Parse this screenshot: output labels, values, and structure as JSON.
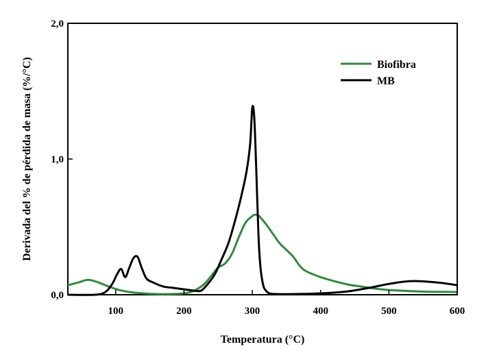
{
  "chart_data": {
    "type": "line",
    "xlabel": "Temperatura (°C)",
    "ylabel": "Derivada del % de pérdida de masa (%/°C)",
    "xlim": [
      30,
      600
    ],
    "ylim": [
      0,
      2.0
    ],
    "xticks": [
      100,
      200,
      300,
      400,
      500,
      600
    ],
    "xtick_labels": [
      "100",
      "200",
      "300",
      "400",
      "500",
      "600"
    ],
    "yticks": [
      0,
      1.0,
      2.0
    ],
    "ytick_labels": [
      "0,0",
      "1,0",
      "2,0"
    ],
    "grid": false,
    "legend_position": "top-right",
    "series": [
      {
        "name": "Biofibra",
        "color": "#2e8b3a",
        "x": [
          30,
          45,
          60,
          75,
          90,
          105,
          120,
          140,
          160,
          180,
          200,
          215,
          230,
          240,
          250,
          260,
          270,
          280,
          290,
          300,
          305,
          310,
          320,
          330,
          340,
          350,
          360,
          370,
          380,
          400,
          420,
          440,
          460,
          480,
          500,
          520,
          540,
          560,
          580,
          600
        ],
        "y": [
          0.07,
          0.09,
          0.11,
          0.09,
          0.06,
          0.035,
          0.02,
          0.01,
          0.005,
          0.005,
          0.01,
          0.03,
          0.08,
          0.14,
          0.2,
          0.23,
          0.3,
          0.42,
          0.53,
          0.58,
          0.59,
          0.58,
          0.52,
          0.45,
          0.38,
          0.33,
          0.28,
          0.21,
          0.17,
          0.13,
          0.1,
          0.075,
          0.06,
          0.045,
          0.035,
          0.03,
          0.025,
          0.022,
          0.021,
          0.02
        ]
      },
      {
        "name": "MB",
        "color": "#000000",
        "x": [
          30,
          70,
          85,
          95,
          102,
          108,
          114,
          120,
          126,
          132,
          138,
          145,
          155,
          170,
          185,
          200,
          215,
          225,
          235,
          245,
          255,
          265,
          275,
          285,
          292,
          297,
          300,
          303,
          306,
          309,
          312,
          316,
          320,
          325,
          335,
          360,
          400,
          440,
          470,
          500,
          520,
          530,
          545,
          560,
          580,
          600
        ],
        "y": [
          0,
          0,
          0.02,
          0.08,
          0.15,
          0.19,
          0.13,
          0.2,
          0.27,
          0.28,
          0.2,
          0.12,
          0.09,
          0.06,
          0.05,
          0.04,
          0.03,
          0.03,
          0.08,
          0.15,
          0.26,
          0.38,
          0.55,
          0.75,
          0.92,
          1.12,
          1.38,
          1.3,
          0.9,
          0.45,
          0.2,
          0.07,
          0.03,
          0.01,
          0.005,
          0.005,
          0.01,
          0.025,
          0.05,
          0.08,
          0.095,
          0.1,
          0.1,
          0.095,
          0.085,
          0.07
        ]
      }
    ]
  }
}
